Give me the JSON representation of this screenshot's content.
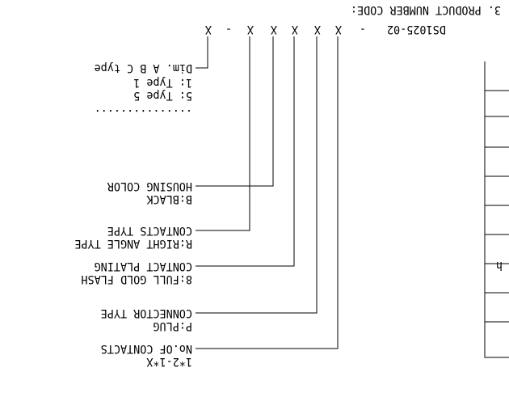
{
  "heading": "3. PRODUCT NUMBER CODE:",
  "code": {
    "base": "DS1025-02",
    "sep1": "-",
    "x1": "X",
    "x2": "X",
    "x3": "X",
    "x4": "X",
    "x5": "X",
    "sep2": "-",
    "x6": "X"
  },
  "callouts": [
    {
      "label": "No.OF CONTACTS",
      "value": "1*2-1*X"
    },
    {
      "label": "CONNECTOR TYPE",
      "value": "P:PLUG"
    },
    {
      "label": "CONTACT PLATING",
      "value": "8:FULL GOLD FLASH"
    },
    {
      "label": "HOUSING COLOR",
      "value": "B:BLACK"
    },
    {
      "label": "CONTACTS TYPE",
      "value": "R:RIGHT ANGLE TYPE"
    }
  ],
  "dimension_callout": {
    "label": "Dim. A B C type",
    "options": [
      "1: Type 1",
      "5: Type 5",
      "..............."
    ]
  },
  "table_fragment_text": "h",
  "colors": {
    "ink": "#000000",
    "paper": "#ffffff"
  }
}
